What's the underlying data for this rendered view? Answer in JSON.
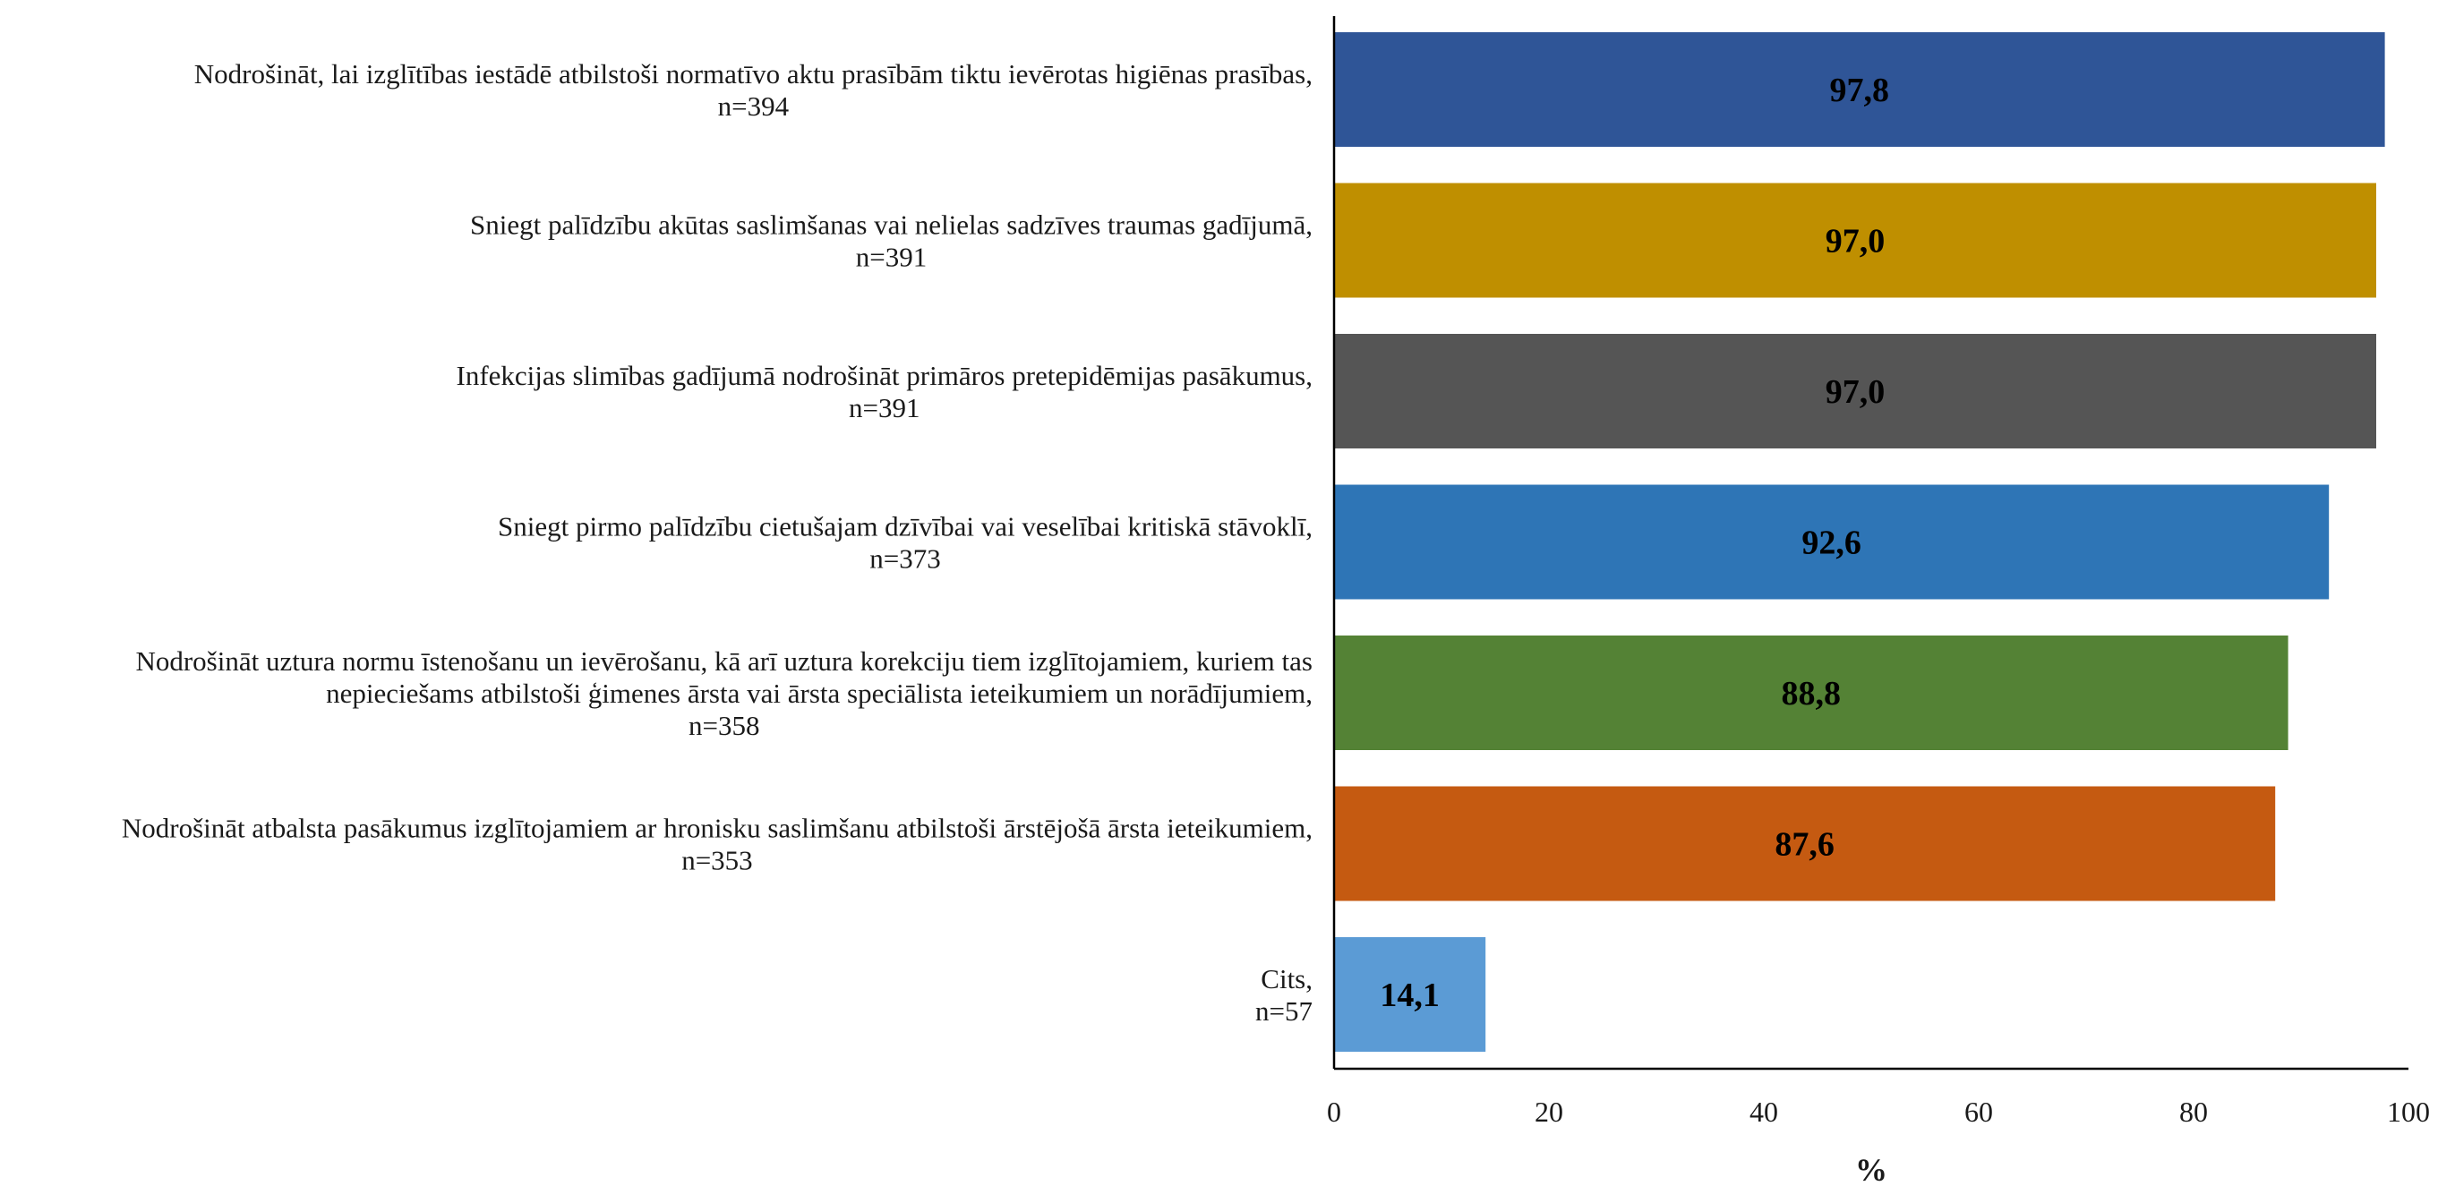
{
  "chart_data": {
    "type": "bar",
    "orientation": "horizontal",
    "categories": [
      [
        "Nodrošināt, lai izglītības iestādē atbilstoši normatīvo aktu prasībām tiktu ievērotas higiēnas prasības,",
        "n=394"
      ],
      [
        "Sniegt palīdzību akūtas saslimšanas vai nelielas sadzīves traumas gadījumā,",
        "n=391"
      ],
      [
        "Infekcijas slimības gadījumā nodrošināt primāros pretepidēmijas pasākumus,",
        "n=391"
      ],
      [
        "Sniegt pirmo palīdzību cietušajam dzīvībai vai veselībai kritiskā stāvoklī,",
        "n=373"
      ],
      [
        "Nodrošināt uztura normu īstenošanu un ievērošanu, kā arī uztura korekciju tiem izglītojamiem, kuriem tas",
        "nepieciešams atbilstoši ģimenes ārsta vai ārsta speciālista ieteikumiem un norādījumiem,",
        "n=358"
      ],
      [
        "Nodrošināt atbalsta pasākumus izglītojamiem ar hronisku saslimšanu atbilstoši ārstējošā ārsta ieteikumiem,",
        "n=353"
      ],
      [
        "Cits,",
        "n=57"
      ]
    ],
    "values": [
      97.8,
      97.0,
      97.0,
      92.6,
      88.8,
      87.6,
      14.1
    ],
    "data_labels": [
      "97,8",
      "97,0",
      "97,0",
      "92,6",
      "88,8",
      "87,6",
      "14,1"
    ],
    "colors": [
      "#2f5597",
      "#bf8f00",
      "#555555",
      "#2e75b6",
      "#548235",
      "#c55a11",
      "#5b9bd5"
    ],
    "xlim": [
      0,
      100
    ],
    "xticks": [
      0,
      20,
      40,
      60,
      80,
      100
    ],
    "xlabel": "%",
    "grid": false,
    "legend": "none"
  }
}
